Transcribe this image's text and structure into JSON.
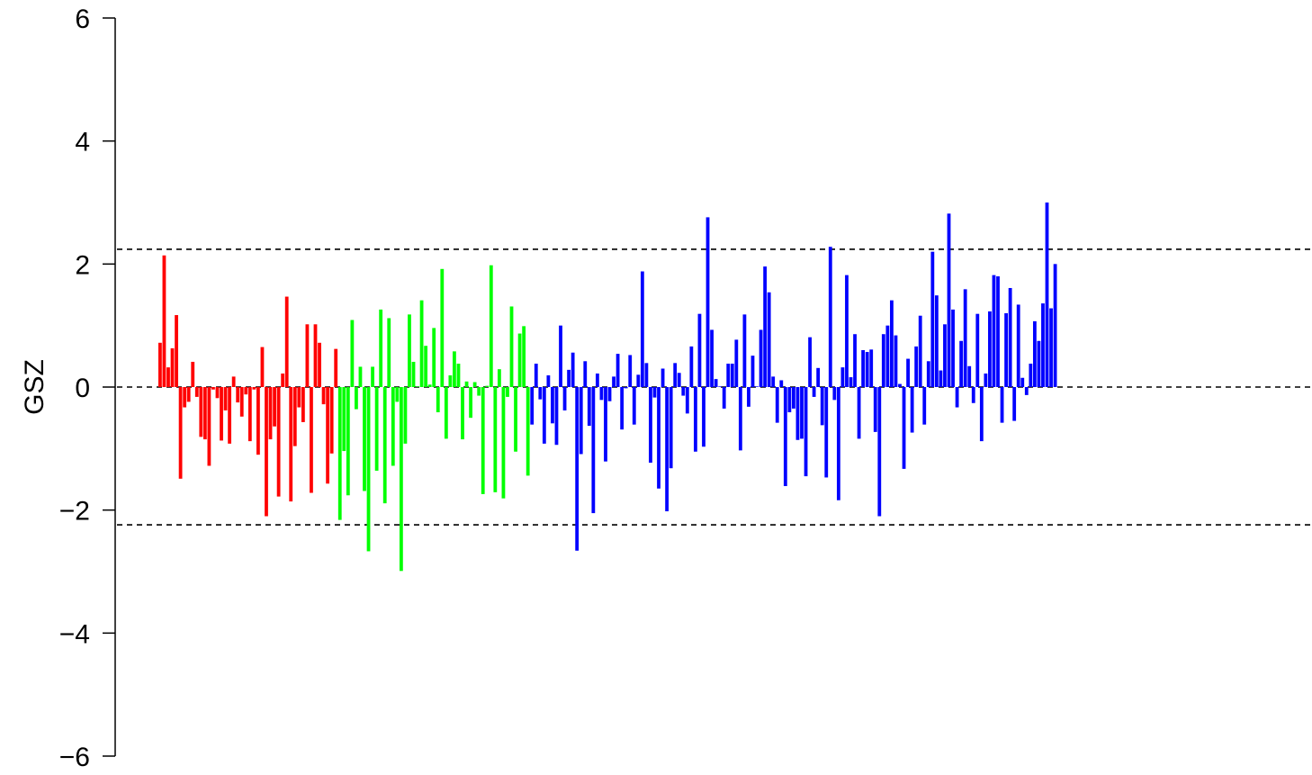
{
  "chart_data": {
    "type": "bar",
    "ylabel": "GSZ",
    "ylim": [
      -6,
      6
    ],
    "yticks": [
      -6,
      -4,
      -2,
      0,
      2,
      4,
      6
    ],
    "ytick_labels": [
      "−6",
      "−4",
      "−2",
      "0",
      "2",
      "4",
      "6"
    ],
    "reference_lines": [
      2.24,
      0,
      -2.24
    ],
    "grid": false,
    "legend": "none",
    "series": [
      {
        "color": "#ff0000",
        "values": [
          0.72,
          2.14,
          0.32,
          0.63,
          1.17,
          -1.49,
          -0.33,
          -0.24,
          0.41,
          -0.16,
          -0.81,
          -0.85,
          -1.28,
          -0.04,
          -0.18,
          -0.87,
          -0.38,
          -0.92,
          0.17,
          -0.25,
          -0.48,
          -0.12,
          -0.88,
          -0.04,
          -1.1,
          0.65,
          -2.1,
          -0.85,
          -0.64,
          -1.78,
          0.22,
          1.47,
          -1.86,
          -0.96,
          -0.33,
          -0.57,
          1.02,
          -1.72,
          1.02,
          0.72,
          -0.28,
          -1.57,
          -1.08,
          0.62
        ]
      },
      {
        "color": "#00ff00",
        "values": [
          -2.16,
          -1.04,
          -1.76,
          1.09,
          -0.36,
          0.33,
          -1.69,
          -2.67,
          0.33,
          -1.36,
          1.26,
          -1.89,
          1.12,
          -1.28,
          -0.24,
          -2.99,
          -0.92,
          1.18,
          0.41,
          0.01,
          1.41,
          0.67,
          0.04,
          0.96,
          -0.41,
          1.92,
          -0.84,
          0.19,
          0.58,
          0.38,
          -0.85,
          0.09,
          -0.5,
          0.08,
          -0.14,
          -1.74,
          0.02,
          1.98,
          -1.71,
          0.29,
          -1.81,
          -0.16,
          1.31,
          -1.05,
          0.87,
          0.99,
          -1.44
        ]
      },
      {
        "color": "#0000ff",
        "values": [
          -0.61,
          0.38,
          -0.2,
          -0.92,
          0.19,
          -0.59,
          -0.94,
          1.0,
          -0.38,
          0.28,
          0.56,
          -2.66,
          -1.09,
          0.42,
          -0.63,
          -2.05,
          0.22,
          -0.21,
          -1.21,
          -0.23,
          0.17,
          0.54,
          -0.69,
          -0.02,
          0.52,
          -0.61,
          0.2,
          1.88,
          0.39,
          -1.23,
          -0.17,
          -1.65,
          0.3,
          -2.02,
          -1.32,
          0.39,
          0.23,
          -0.14,
          -0.43,
          0.66,
          -1.05,
          1.19,
          -0.97,
          2.76,
          0.93,
          0.13,
          0.01,
          -0.35,
          0.38,
          0.38,
          0.77,
          -1.03,
          1.18,
          -0.32,
          0.51,
          0.01,
          0.93,
          1.96,
          1.54,
          0.17,
          -0.58,
          0.11,
          -1.61,
          -0.41,
          -0.35,
          -0.86,
          -0.84,
          -1.45,
          0.81,
          -0.16,
          0.31,
          -0.62,
          -1.47,
          2.28,
          -0.21,
          -1.84,
          0.32,
          1.82,
          0.16,
          0.86,
          -0.84,
          0.6,
          0.57,
          0.61,
          -0.73,
          -2.1,
          0.86,
          1.0,
          1.41,
          0.84,
          0.05,
          -1.33,
          0.46,
          -0.74,
          0.66,
          1.16,
          -0.61,
          0.42,
          2.2,
          1.49,
          0.27,
          1.02,
          2.82,
          1.26,
          -0.33,
          0.75,
          1.59,
          0.34,
          -0.26,
          1.19,
          -0.88,
          0.22,
          1.23,
          1.82,
          1.8,
          -0.58,
          1.2,
          1.61,
          -0.55,
          1.34,
          0.15,
          -0.13,
          0.38,
          1.07,
          0.75,
          1.36,
          3.0,
          1.28,
          2.0
        ]
      }
    ]
  }
}
